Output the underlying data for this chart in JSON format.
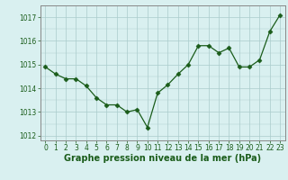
{
  "x": [
    0,
    1,
    2,
    3,
    4,
    5,
    6,
    7,
    8,
    9,
    10,
    11,
    12,
    13,
    14,
    15,
    16,
    17,
    18,
    19,
    20,
    21,
    22,
    23
  ],
  "y": [
    1014.9,
    1014.6,
    1014.4,
    1014.4,
    1014.1,
    1013.6,
    1013.3,
    1013.3,
    1013.0,
    1013.1,
    1012.35,
    1013.8,
    1014.15,
    1014.6,
    1015.0,
    1015.8,
    1015.8,
    1015.5,
    1015.7,
    1014.9,
    1014.9,
    1015.2,
    1016.4,
    1017.1
  ],
  "line_color": "#1a5c1a",
  "marker": "D",
  "marker_size": 2.5,
  "bg_color": "#d9f0f0",
  "grid_color": "#aacccc",
  "xlabel": "Graphe pression niveau de la mer (hPa)",
  "xlabel_fontsize": 7,
  "ylim": [
    1011.8,
    1017.5
  ],
  "yticks": [
    1012,
    1013,
    1014,
    1015,
    1016,
    1017
  ],
  "xticks": [
    0,
    1,
    2,
    3,
    4,
    5,
    6,
    7,
    8,
    9,
    10,
    11,
    12,
    13,
    14,
    15,
    16,
    17,
    18,
    19,
    20,
    21,
    22,
    23
  ],
  "tick_fontsize": 5.5,
  "axis_color": "#1a5c1a",
  "spine_color": "#888888"
}
